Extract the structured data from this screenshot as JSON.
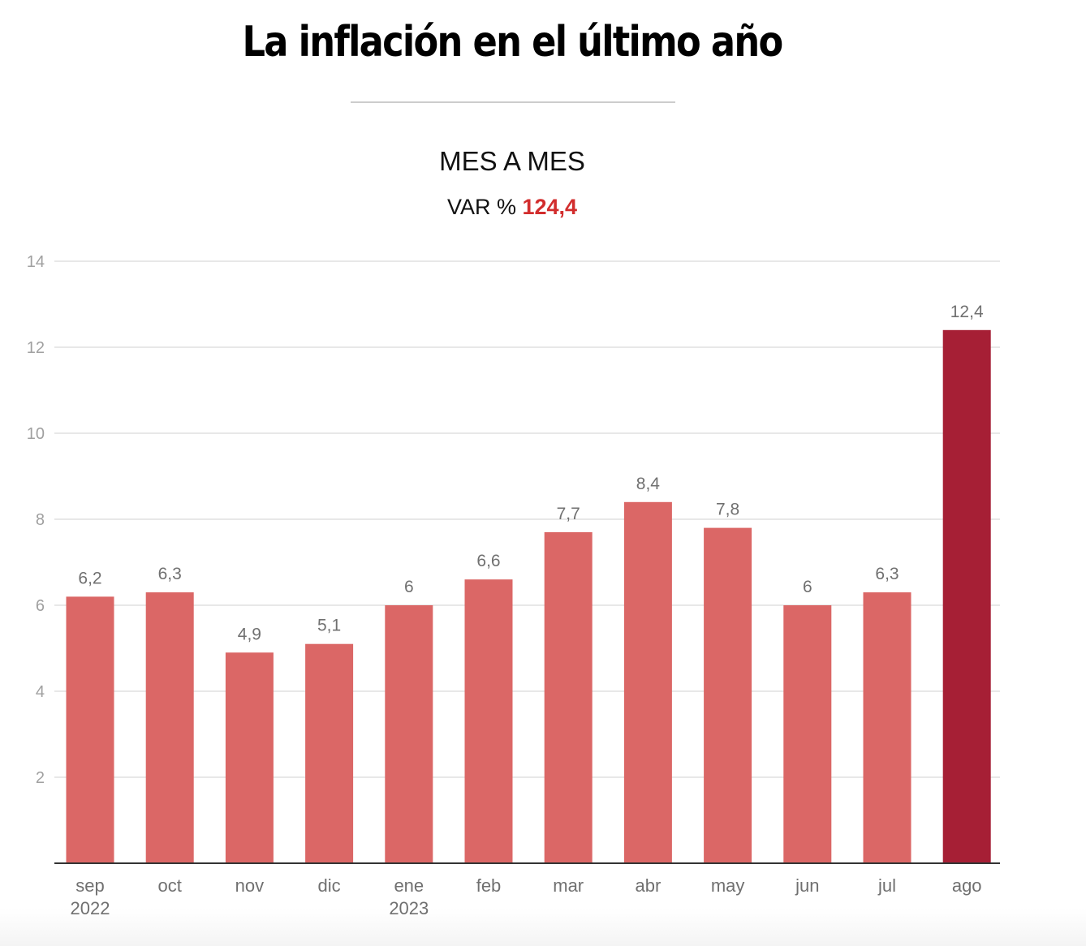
{
  "header": {
    "title": "La inflación en el último año",
    "subtitle": "MES A MES",
    "var_label": "VAR %",
    "var_value": "124,4"
  },
  "colors": {
    "bar": "#db6766",
    "highlight_bar": "#a61f35",
    "var_value": "#d22d2d",
    "gridline": "#e8e8e8",
    "axis": "#333333"
  },
  "chart_data": {
    "type": "bar",
    "title": "La inflación en el último año",
    "subtitle": "MES A MES — VAR % 124,4",
    "xlabel": "",
    "ylabel": "",
    "categories": [
      "sep\n2022",
      "oct",
      "nov",
      "dic",
      "ene\n2023",
      "feb",
      "mar",
      "abr",
      "may",
      "jun",
      "jul",
      "ago"
    ],
    "category_lines": [
      [
        "sep",
        "2022"
      ],
      [
        "oct"
      ],
      [
        "nov"
      ],
      [
        "dic"
      ],
      [
        "ene",
        "2023"
      ],
      [
        "feb"
      ],
      [
        "mar"
      ],
      [
        "abr"
      ],
      [
        "may"
      ],
      [
        "jun"
      ],
      [
        "jul"
      ],
      [
        "ago"
      ]
    ],
    "values": [
      6.2,
      6.3,
      4.9,
      5.1,
      6.0,
      6.6,
      7.7,
      8.4,
      7.8,
      6.0,
      6.3,
      12.4
    ],
    "value_labels": [
      "6,2",
      "6,3",
      "4,9",
      "5,1",
      "6",
      "6,6",
      "7,7",
      "8,4",
      "7,8",
      "6",
      "6,3",
      "12,4"
    ],
    "highlight_index": 11,
    "ylim": [
      0,
      14
    ],
    "yticks": [
      2,
      4,
      6,
      8,
      10,
      12,
      14
    ],
    "grid": true,
    "legend": "none"
  }
}
